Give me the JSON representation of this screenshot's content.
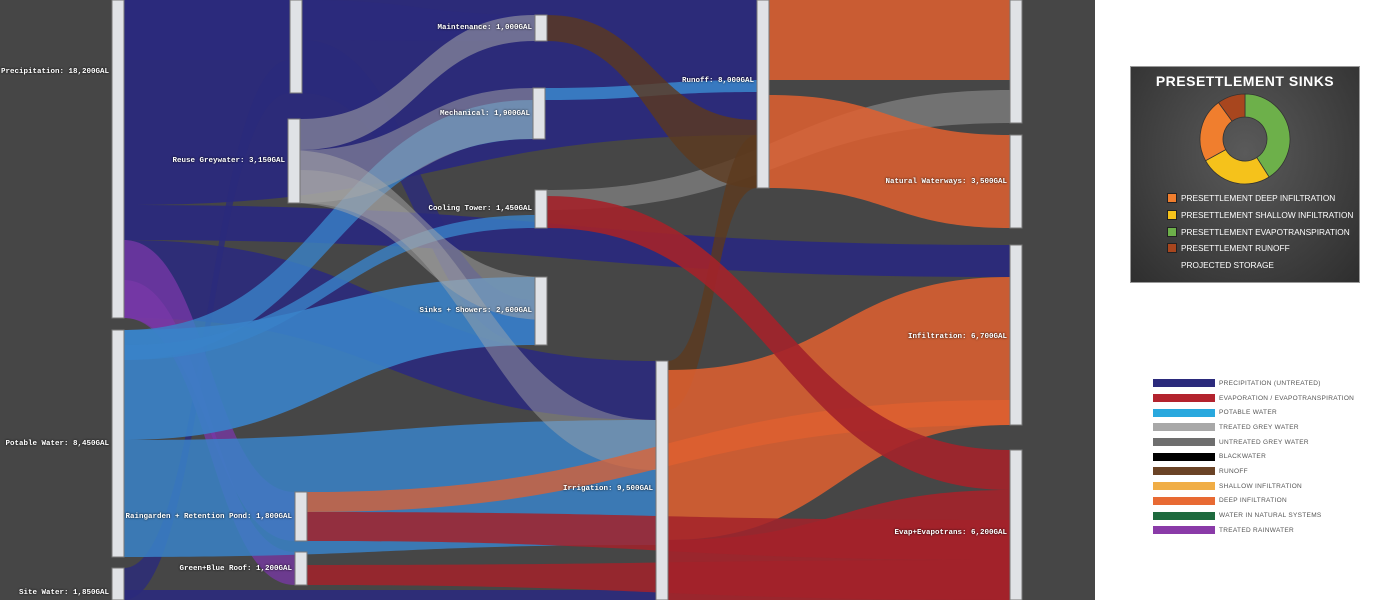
{
  "nodes": {
    "precipitation": "Precipitation: 18,200GAL",
    "potable_water": "Potable Water: 8,450GAL",
    "site_water": "Site Water: 1,850GAL",
    "reuse_greywater": "Reuse Greywater: 3,150GAL",
    "maintenance": "Maintenance: 1,000GAL",
    "mechanical": "Mechanical: 1,900GAL",
    "cooling_tower": "Cooling Tower: 1,450GAL",
    "sinks_showers": "Sinks + Showers: 2,600GAL",
    "raingarden": "Raingarden + Retention Pond: 1,800GAL",
    "green_blue_roof": "Green+Blue Roof: 1,200GAL",
    "irrigation": "Irrigation: 9,500GAL",
    "runoff": "Runoff: 8,000GAL",
    "natural_waterways": "Natural Waterways: 3,500GAL",
    "infiltration": "Infiltration: 6,700GAL",
    "evap": "Evap+Evapotrans: 6,200GAL"
  },
  "colors": {
    "precipitation": "#2b2a7c",
    "evaporation": "#a3222a",
    "potable": "#3a82c8",
    "treated_grey": "#a8a8a8",
    "untreated_grey": "#6e6e6e",
    "blackwater": "#000000",
    "runoff": "#5c3a1e",
    "shallow": "#f0ad45",
    "deep": "#e06030",
    "natural": "#1e6a3e",
    "rainwater": "#7a38a8"
  },
  "sinks_panel": {
    "title": "PRESETTLEMENT SINKS",
    "items": [
      {
        "label": "PRESETTLEMENT DEEP INFILTRATION",
        "color": "#f07e2e"
      },
      {
        "label": "PRESETTLEMENT SHALLOW INFILTRATION",
        "color": "#f5c21b"
      },
      {
        "label": "PRESETTLEMENT EVAPOTRANSPIRATION",
        "color": "#6db04a"
      },
      {
        "label": "PRESETTLEMENT RUNOFF",
        "color": "#a8461e"
      },
      {
        "label": "PROJECTED STORAGE",
        "color": null
      }
    ]
  },
  "chart_data": {
    "type": "pie",
    "title": "PRESETTLEMENT SINKS",
    "categories": [
      "PRESETTLEMENT EVAPOTRANSPIRATION",
      "PRESETTLEMENT SHALLOW INFILTRATION",
      "PRESETTLEMENT DEEP INFILTRATION",
      "PRESETTLEMENT RUNOFF"
    ],
    "values": [
      41,
      26,
      23,
      10
    ],
    "colors": [
      "#6db04a",
      "#f5c21b",
      "#f07e2e",
      "#a8461e"
    ],
    "donut": true
  },
  "legend": [
    {
      "label": "PRECIPITATION (UNTREATED)",
      "color": "#2b2a7c"
    },
    {
      "label": "EVAPORATION / EVAPOTRANSPIRATION",
      "color": "#b3232e"
    },
    {
      "label": "POTABLE WATER",
      "color": "#29a8de"
    },
    {
      "label": "TREATED GREY WATER",
      "color": "#a8a8a8"
    },
    {
      "label": "UNTREATED GREY WATER",
      "color": "#6e6e6e"
    },
    {
      "label": "BLACKWATER",
      "color": "#000000"
    },
    {
      "label": "RUNOFF",
      "color": "#6a4326"
    },
    {
      "label": "SHALLOW INFILTRATION",
      "color": "#f0ad45"
    },
    {
      "label": "DEEP INFILTRATION",
      "color": "#e86a33"
    },
    {
      "label": "WATER IN NATURAL SYSTEMS",
      "color": "#1e6a3e"
    },
    {
      "label": "TREATED RAINWATER",
      "color": "#8a3aa8"
    }
  ]
}
